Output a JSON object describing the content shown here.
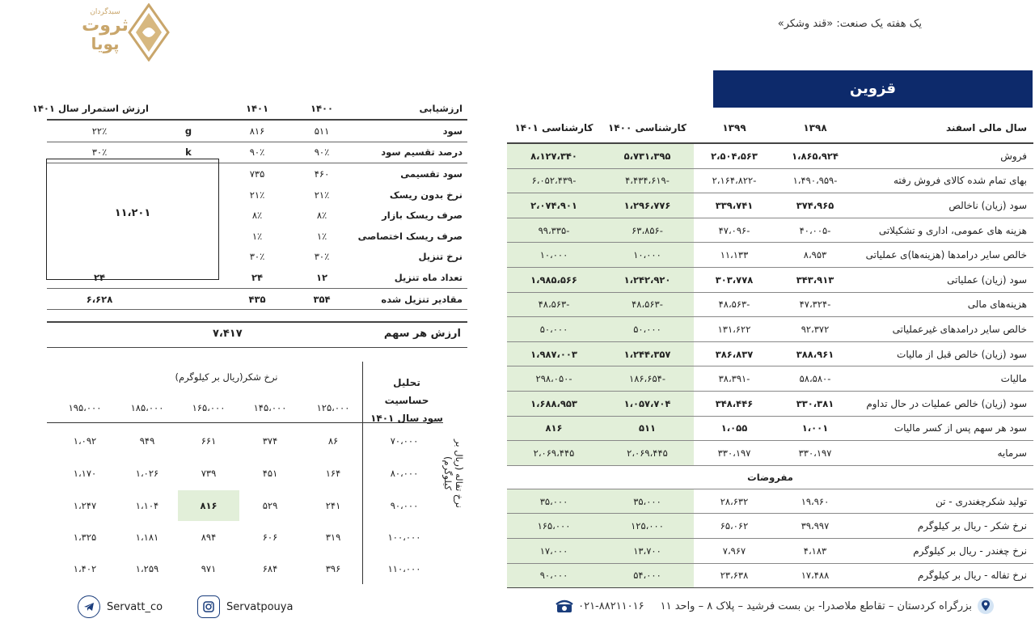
{
  "header": {
    "logo": {
      "line1": "سبدگردان",
      "line2": "ثروت",
      "line3": "پویا"
    },
    "subtitle": "یک هفته یک صنعت: «قند وشکر»",
    "company": "قزوین"
  },
  "financials": {
    "columns": [
      "سال مالی اسفند",
      "۱۳۹۸",
      "۱۳۹۹",
      "کارشناسی ۱۴۰۰",
      "کارشناسی ۱۴۰۱"
    ],
    "rows": [
      {
        "label": "فروش",
        "values": [
          "۱،۸۶۵،۹۲۴",
          "۲،۵۰۴،۵۶۳",
          "۵،۷۳۱،۳۹۵",
          "۸،۱۲۷،۳۴۰"
        ],
        "bold": true
      },
      {
        "label": "بهای تمام شده کالای فروش رفته",
        "values": [
          "-۱،۴۹۰،۹۵۹",
          "-۲،۱۶۴،۸۲۲",
          "-۴،۴۳۴،۶۱۹",
          "-۶،۰۵۲،۴۳۹"
        ],
        "bold": false
      },
      {
        "label": "سود (زیان) ناخالص",
        "values": [
          "۳۷۴،۹۶۵",
          "۳۳۹،۷۴۱",
          "۱،۲۹۶،۷۷۶",
          "۲،۰۷۴،۹۰۱"
        ],
        "bold": true
      },
      {
        "label": "هزینه های عمومی، اداری و تشکیلاتی",
        "values": [
          "-۴۰،۰۰۵",
          "-۴۷،۰۹۶",
          "-۶۳،۸۵۶",
          "-۹۹،۳۳۵"
        ],
        "bold": false
      },
      {
        "label": "خالص سایر درامدها (هزینه‌ها)ی عملیاتی",
        "values": [
          "۸،۹۵۳",
          "۱۱،۱۳۳",
          "۱۰،۰۰۰",
          "۱۰،۰۰۰"
        ],
        "bold": false
      },
      {
        "label": "سود (زیان) عملیاتی",
        "values": [
          "۳۴۳،۹۱۳",
          "۳۰۳،۷۷۸",
          "۱،۲۴۲،۹۲۰",
          "۱،۹۸۵،۵۶۶"
        ],
        "bold": true
      },
      {
        "label": "هزینه‌های مالی",
        "values": [
          "-۴۷،۳۲۴",
          "-۴۸،۵۶۳",
          "-۴۸،۵۶۳",
          "-۴۸،۵۶۳"
        ],
        "bold": false
      },
      {
        "label": "خالص سایر درامدهای غیرعملیاتی",
        "values": [
          "۹۲،۳۷۲",
          "۱۳۱،۶۲۲",
          "۵۰،۰۰۰",
          "۵۰،۰۰۰"
        ],
        "bold": false
      },
      {
        "label": "سود (زیان) خالص  قبل از مالیات",
        "values": [
          "۳۸۸،۹۶۱",
          "۳۸۶،۸۳۷",
          "۱،۲۴۴،۳۵۷",
          "۱،۹۸۷،۰۰۳"
        ],
        "bold": true
      },
      {
        "label": "مالیات",
        "values": [
          "-۵۸،۵۸۰",
          "-۳۸،۳۹۱",
          "-۱۸۶،۶۵۴",
          "-۲۹۸،۰۵۰"
        ],
        "bold": false
      },
      {
        "label": "سود (زیان) خالص عملیات در حال تداوم",
        "values": [
          "۳۳۰،۳۸۱",
          "۳۴۸،۴۴۶",
          "۱،۰۵۷،۷۰۴",
          "۱،۶۸۸،۹۵۳"
        ],
        "bold": true
      },
      {
        "label": "سود هر سهم پس از کسر مالیات",
        "values": [
          "۱،۰۰۱",
          "۱،۰۵۵",
          "۵۱۱",
          "۸۱۶"
        ],
        "bold": true
      },
      {
        "label": "سرمایه",
        "values": [
          "۳۳۰،۱۹۷",
          "۳۳۰،۱۹۷",
          "۲،۰۶۹،۴۴۵",
          "۲،۰۶۹،۴۴۵"
        ],
        "bold": false
      }
    ],
    "assumptions_title": "مفروضات",
    "assumptions": [
      {
        "label": "تولید شکرچغندری - تن",
        "values": [
          "۱۹،۹۶۰",
          "۲۸،۶۳۲",
          "۳۵،۰۰۰",
          "۳۵،۰۰۰"
        ]
      },
      {
        "label": "نرخ شکر - ریال بر کیلوگرم",
        "values": [
          "۳۹،۹۹۷",
          "۶۵،۰۶۲",
          "۱۲۵،۰۰۰",
          "۱۶۵،۰۰۰"
        ]
      },
      {
        "label": "نرخ چغندر - ریال بر کیلوگرم",
        "values": [
          "۴،۱۸۳",
          "۷،۹۶۷",
          "۱۳،۷۰۰",
          "۱۷،۰۰۰"
        ]
      },
      {
        "label": "نرخ تفاله - ریال بر کیلوگرم",
        "values": [
          "۱۷،۴۸۸",
          "۲۳،۶۳۸",
          "۵۴،۰۰۰",
          "۹۰،۰۰۰"
        ]
      }
    ]
  },
  "valuation": {
    "columns": [
      "ارزشیابی",
      "۱۴۰۰",
      "۱۴۰۱",
      "",
      "ارزش استمرار سال ۱۴۰۱"
    ],
    "rows": [
      {
        "label": "سود",
        "v1400": "۵۱۱",
        "v1401": "۸۱۶",
        "sym": "g",
        "cont": "۲۲٪"
      },
      {
        "label": "درصد تقسیم سود",
        "v1400": "۹۰٪",
        "v1401": "۹۰٪",
        "sym": "k",
        "cont": "۳۰٪"
      },
      {
        "label": "سود تقسیمی",
        "v1400": "۴۶۰",
        "v1401": "۷۳۵",
        "sym": "",
        "cont": ""
      },
      {
        "label": "نرخ بدون ریسک",
        "v1400": "۲۱٪",
        "v1401": "۲۱٪",
        "sym": "",
        "cont": ""
      },
      {
        "label": "صرف ریسک بازار",
        "v1400": "۸٪",
        "v1401": "۸٪",
        "sym": "",
        "cont": ""
      },
      {
        "label": "صرف ریسک اختصاصی",
        "v1400": "۱٪",
        "v1401": "۱٪",
        "sym": "",
        "cont": ""
      },
      {
        "label": "نرخ تنزیل",
        "v1400": "۳۰٪",
        "v1401": "۳۰٪",
        "sym": "",
        "cont": ""
      },
      {
        "label": "تعداد ماه تنزیل",
        "v1400": "۱۲",
        "v1401": "۲۴",
        "sym": "",
        "cont": "۲۴"
      },
      {
        "label": "مقادیر تنزیل شده",
        "v1400": "۳۵۴",
        "v1401": "۴۳۵",
        "sym": "",
        "cont": "۶،۶۲۸"
      }
    ],
    "terminal_value": "۱۱،۲۰۱",
    "share_value_label": "ارزش هر سهم",
    "share_value": "۷،۴۱۷"
  },
  "sensitivity": {
    "title_line1": "تحلیل حساسیت",
    "title_line2": "سود سال ۱۴۰۱",
    "x_label": "نرخ شکر(ریال بر کیلوگرم)",
    "y_label": "نرخ تفاله (ریال بر کیلوگرم)",
    "sugar_prices": [
      "۱۲۵،۰۰۰",
      "۱۴۵،۰۰۰",
      "۱۶۵،۰۰۰",
      "۱۸۵،۰۰۰",
      "۱۹۵،۰۰۰"
    ],
    "pulp_prices": [
      "۷۰،۰۰۰",
      "۸۰،۰۰۰",
      "۹۰،۰۰۰",
      "۱۰۰،۰۰۰",
      "۱۱۰،۰۰۰"
    ],
    "grid": [
      [
        "۸۶",
        "۳۷۴",
        "۶۶۱",
        "۹۴۹",
        "۱،۰۹۲"
      ],
      [
        "۱۶۴",
        "۴۵۱",
        "۷۳۹",
        "۱،۰۲۶",
        "۱،۱۷۰"
      ],
      [
        "۲۴۱",
        "۵۲۹",
        "۸۱۶",
        "۱،۱۰۴",
        "۱،۲۴۷"
      ],
      [
        "۳۱۹",
        "۶۰۶",
        "۸۹۴",
        "۱،۱۸۱",
        "۱،۳۲۵"
      ],
      [
        "۳۹۶",
        "۶۸۴",
        "۹۷۱",
        "۱،۲۵۹",
        "۱،۴۰۲"
      ]
    ],
    "highlight": {
      "row": 2,
      "col": 2
    }
  },
  "footer": {
    "telegram": "Servatt_co",
    "instagram": "Servatpouya",
    "phone": "۰۲۱-۸۸۲۱۱۰۱۶",
    "address": "بزرگراه کردستان – تقاطع ملاصدرا- بن بست فرشید – پلاک ۸ – واحد ۱۱"
  },
  "colors": {
    "banner": "#0d2a6b",
    "highlight": "#e2efd9",
    "logo_gold": "#c9a66b"
  }
}
